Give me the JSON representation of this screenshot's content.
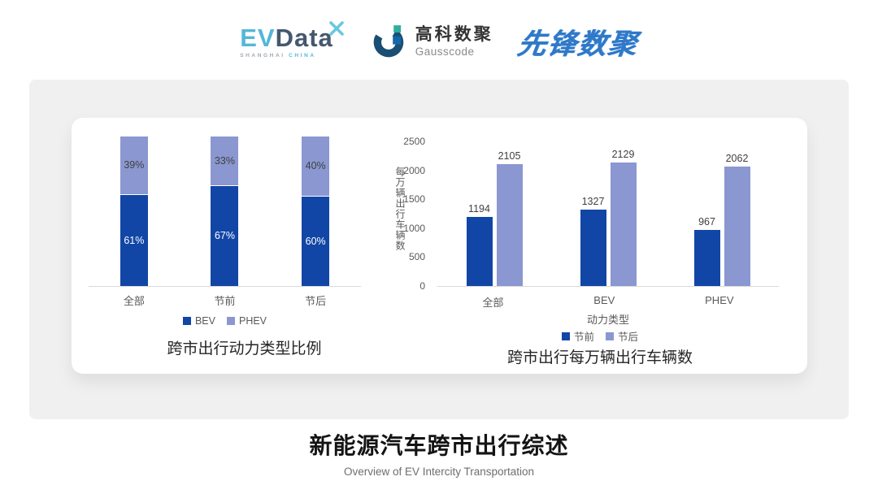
{
  "header": {
    "logos": {
      "evdata": {
        "ev": "EV",
        "data": "Data",
        "sub_left": "SHANGHAI",
        "sub_right": "CHINA"
      },
      "gausscode": {
        "cn": "高科数聚",
        "en": "Gausscode"
      },
      "xianfeng": {
        "text": "先锋数聚"
      }
    }
  },
  "colors": {
    "series_dark_blue": "#1146A6",
    "series_light_periwinkle": "#8B97D1",
    "axis_text": "#595959",
    "value_label": "#404040",
    "axis_line": "#d9d9d9",
    "panel_gray": "#f0f0f0",
    "card_white": "#ffffff",
    "evdata_cyan": "#54b7d8",
    "evdata_slate": "#44586e",
    "gausscode_navy": "#1a4e74",
    "gausscode_teal": "#2fae9e",
    "xianfeng_blue": "#3078c8"
  },
  "chart_data": [
    {
      "type": "bar",
      "variant": "stacked-100pct",
      "title": "跨市出行动力类型比例",
      "categories": [
        "全部",
        "节前",
        "节后"
      ],
      "series": [
        {
          "name": "BEV",
          "color": "#1146A6",
          "values": [
            61,
            67,
            60
          ],
          "labels": [
            "61%",
            "67%",
            "60%"
          ],
          "label_color": "#ffffff"
        },
        {
          "name": "PHEV",
          "color": "#8B97D1",
          "values": [
            39,
            33,
            40
          ],
          "labels": [
            "39%",
            "33%",
            "40%"
          ],
          "label_color": "#3f3f3f"
        }
      ],
      "xlabel": "",
      "ylabel": "",
      "ylim": [
        0,
        100
      ],
      "grid": false,
      "legend_position": "bottom"
    },
    {
      "type": "bar",
      "variant": "grouped",
      "title": "跨市出行每万辆出行车辆数",
      "categories": [
        "全部",
        "BEV",
        "PHEV"
      ],
      "xlabel": "动力类型",
      "ylabel": "每万辆出行车辆数",
      "ylim": [
        0,
        2500
      ],
      "yticks": [
        0,
        500,
        1000,
        1500,
        2000,
        2500
      ],
      "series": [
        {
          "name": "节前",
          "color": "#1146A6",
          "values": [
            1194,
            1327,
            967
          ]
        },
        {
          "name": "节后",
          "color": "#8B97D1",
          "values": [
            2105,
            2129,
            2062
          ]
        }
      ],
      "grid": false,
      "legend_position": "bottom"
    }
  ],
  "footer": {
    "title": "新能源汽车跨市出行综述",
    "subtitle": "Overview of EV Intercity Transportation"
  }
}
